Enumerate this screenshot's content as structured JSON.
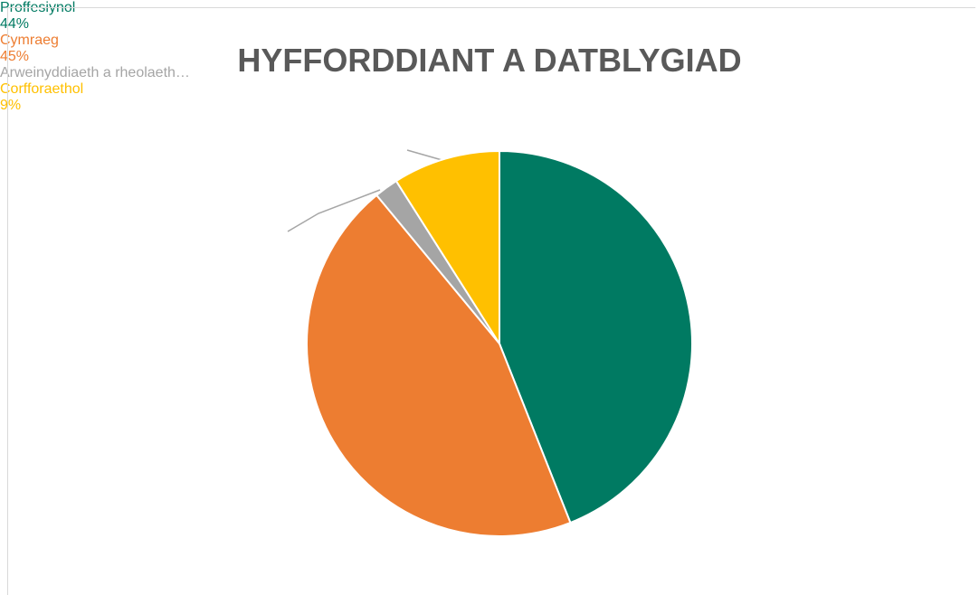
{
  "chart_data": {
    "type": "pie",
    "title": "HYFFORDDIANT A DATBLYGIAD",
    "categories": [
      "Proffesiynol",
      "Cymraeg",
      "Arweinyddiaeth a rheolaeth…",
      "Corfforaethol"
    ],
    "values": [
      44,
      45,
      2,
      9
    ],
    "value_labels": [
      "44%",
      "45%",
      null,
      "9%"
    ],
    "colors": [
      "#007a62",
      "#ed7d31",
      "#a5a5a5",
      "#ffc000"
    ]
  }
}
